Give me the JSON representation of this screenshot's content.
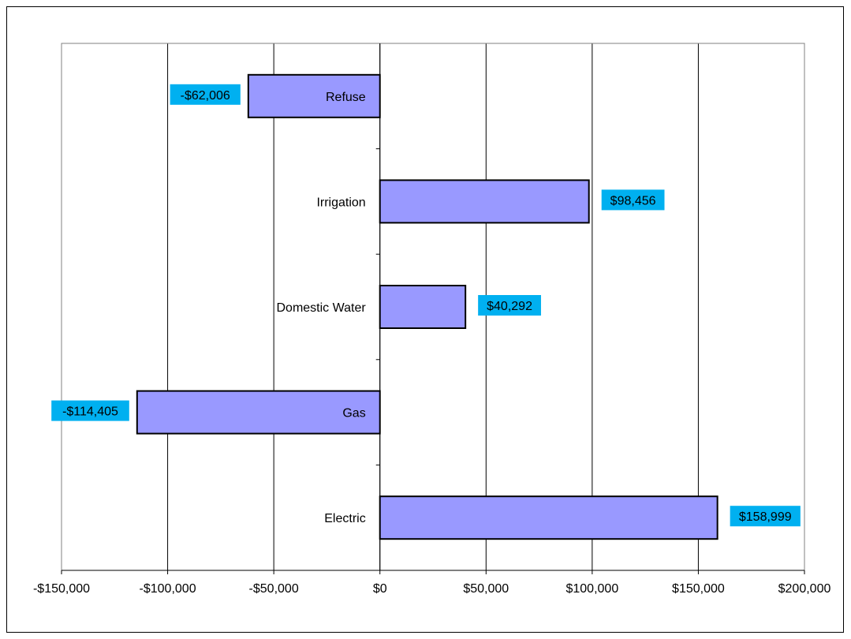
{
  "chart_data": {
    "type": "bar",
    "orientation": "horizontal",
    "title": "",
    "xlabel": "",
    "ylabel": "",
    "categories": [
      "Refuse",
      "Irrigation",
      "Domestic Water",
      "Gas",
      "Electric"
    ],
    "values": [
      -62006,
      98456,
      40292,
      -114405,
      158999
    ],
    "data_labels": [
      "-$62,006",
      "$98,456",
      "$40,292",
      "-$114,405",
      "$158,999"
    ],
    "xlim": [
      -150000,
      200000
    ],
    "x_ticks": [
      -150000,
      -100000,
      -50000,
      0,
      50000,
      100000,
      150000,
      200000
    ],
    "x_tick_labels": [
      "-$150,000",
      "-$100,000",
      "-$50,000",
      "$0",
      "$50,000",
      "$100,000",
      "$150,000",
      "$200,000"
    ],
    "grid": "vertical",
    "legend": "none",
    "colors": {
      "bar_fill": "#9999ff",
      "bar_stroke": "#000000",
      "label_bg": "#00b0f0",
      "gridline": "#000000"
    }
  }
}
